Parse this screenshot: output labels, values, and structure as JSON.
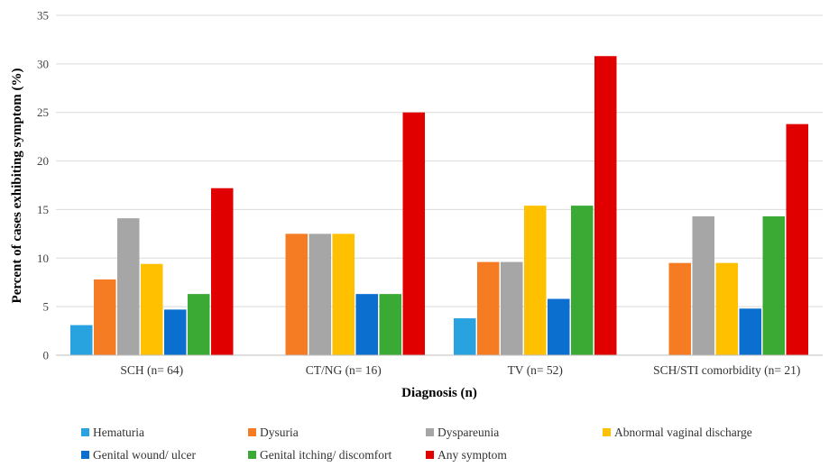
{
  "chart_data": {
    "type": "bar",
    "title": "",
    "xlabel": "Diagnosis (n)",
    "ylabel": "Percent of cases exhibiting symptom (%)",
    "ylim": [
      0,
      35
    ],
    "yticks": [
      0,
      5,
      10,
      15,
      20,
      25,
      30,
      35
    ],
    "grid": true,
    "legend_position": "bottom",
    "categories": [
      "SCH (n= 64)",
      "CT/NG (n= 16)",
      "TV (n= 52)",
      "SCH/STI comorbidity (n= 21)"
    ],
    "series": [
      {
        "name": "Hematuria",
        "color": "#29a3e0",
        "values": [
          3.1,
          0,
          3.8,
          0
        ]
      },
      {
        "name": "Dysuria",
        "color": "#f57c22",
        "values": [
          7.8,
          12.5,
          9.6,
          9.5
        ]
      },
      {
        "name": "Dyspareunia",
        "color": "#a6a6a6",
        "values": [
          14.1,
          12.5,
          9.6,
          14.3
        ]
      },
      {
        "name": "Abnormal vaginal discharge",
        "color": "#ffc000",
        "values": [
          9.4,
          12.5,
          15.4,
          9.5
        ]
      },
      {
        "name": "Genital wound/ ulcer",
        "color": "#0b6fcf",
        "values": [
          4.7,
          6.3,
          5.8,
          4.8
        ]
      },
      {
        "name": "Genital itching/ discomfort",
        "color": "#3aaa35",
        "values": [
          6.3,
          6.3,
          15.4,
          14.3
        ]
      },
      {
        "name": "Any symptom",
        "color": "#e00000",
        "values": [
          17.2,
          25.0,
          30.8,
          23.8
        ]
      }
    ]
  }
}
